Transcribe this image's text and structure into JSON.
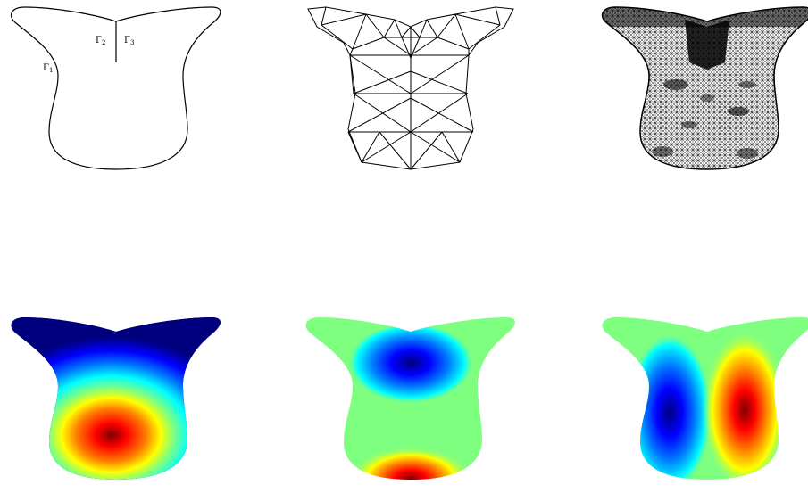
{
  "figure": {
    "boundary_labels": [
      {
        "base": "Γ",
        "sub": "1"
      },
      {
        "base": "Γ",
        "sub": "2"
      },
      {
        "base": "Γ",
        "sub": "3"
      }
    ],
    "panels": [
      {
        "row": 1,
        "col": 1,
        "content": "domain-outline"
      },
      {
        "row": 1,
        "col": 2,
        "content": "coarse-mesh"
      },
      {
        "row": 1,
        "col": 3,
        "content": "fine-mesh"
      },
      {
        "row": 2,
        "col": 1,
        "content": "eigenfunction-1"
      },
      {
        "row": 2,
        "col": 2,
        "content": "eigenfunction-2"
      },
      {
        "row": 2,
        "col": 3,
        "content": "eigenfunction-3"
      }
    ],
    "colormap": "jet",
    "colors": {
      "stroke": "#000000",
      "jet_low": "#00007f",
      "jet_mid": "#7fff7f",
      "jet_high": "#7f0000"
    }
  }
}
